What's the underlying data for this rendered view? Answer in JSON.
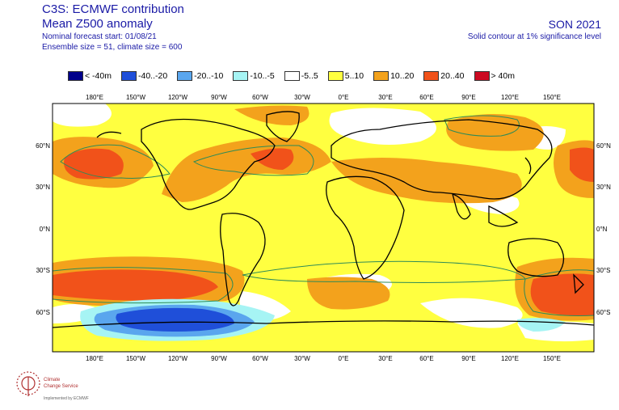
{
  "header": {
    "title_line1": "C3S: ECMWF contribution",
    "title_line2": "Mean Z500 anomaly",
    "forecast_start": "Nominal forecast start: 01/08/21",
    "ensemble_info": "Ensemble size = 51, climate size = 600",
    "season": "SON 2021",
    "significance_note": "Solid contour at 1% significance level"
  },
  "legend": [
    {
      "label": "< -40m",
      "color": "#00008b"
    },
    {
      "label": "-40..-20",
      "color": "#1f4fd9"
    },
    {
      "label": "-20..-10",
      "color": "#5aa6ee"
    },
    {
      "label": "-10..-5",
      "color": "#a6f4f4"
    },
    {
      "label": "-5..5",
      "color": "#ffffff"
    },
    {
      "label": "5..10",
      "color": "#ffff40"
    },
    {
      "label": "10..20",
      "color": "#f3a21c"
    },
    {
      "label": "20..40",
      "color": "#f1521a"
    },
    {
      "label": "> 40m",
      "color": "#cc0a22"
    }
  ],
  "axes": {
    "lon_labels": [
      "180°E",
      "150°W",
      "120°W",
      "90°W",
      "60°W",
      "30°W",
      "0°E",
      "30°E",
      "60°E",
      "90°E",
      "120°E",
      "150°E"
    ],
    "lat_labels": [
      "60°N",
      "30°N",
      "0°N",
      "30°S",
      "60°S"
    ]
  },
  "logo": {
    "name_line1": "Climate",
    "name_line2": "Change Service",
    "footer": "Implemented by ECMWF"
  }
}
